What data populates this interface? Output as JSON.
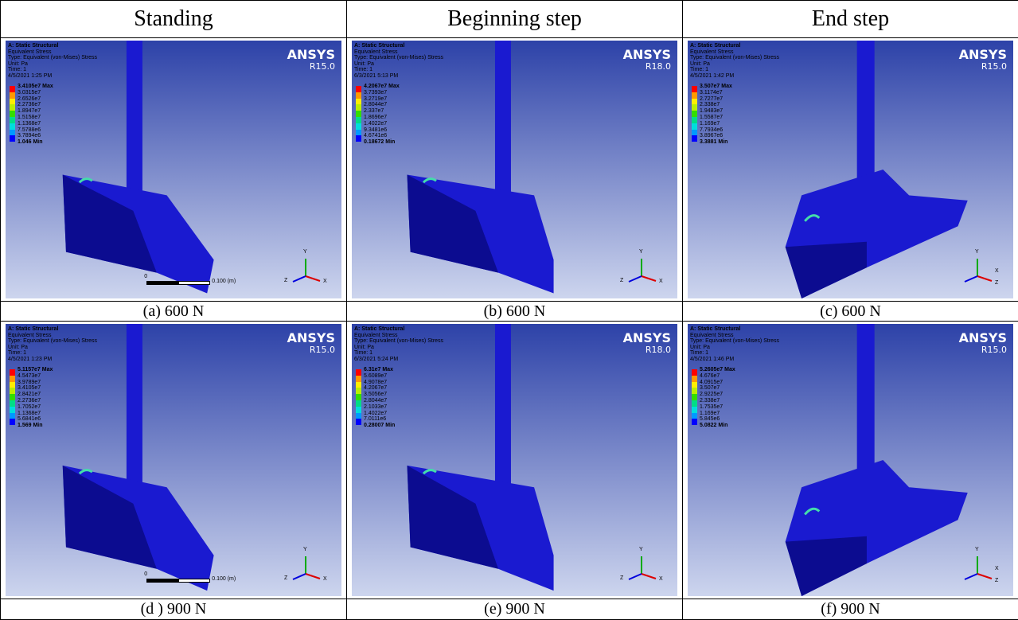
{
  "header": [
    "Standing",
    "Beginning step",
    "End step"
  ],
  "panels": [
    {
      "software": "ANSYS",
      "version": "R15.0",
      "title": "A: Static Structural",
      "result": "Equivalent Stress",
      "type": "Type: Equivalent (von-Mises) Stress",
      "unit": "Unit: Pa",
      "time": "Time: 1",
      "date": "4/5/2021 1:25 PM",
      "legend": [
        "3.4105e7 Max",
        "3.0315e7",
        "2.6526e7",
        "2.2736e7",
        "1.8947e7",
        "1.5158e7",
        "1.1368e7",
        "7.5788e6",
        "3.7894e6",
        "1.046 Min"
      ],
      "scale": [
        "0",
        "0.100 (m)"
      ],
      "axes": [
        "Y",
        "Z",
        "X"
      ],
      "caption": "(a)  600 N"
    },
    {
      "software": "ANSYS",
      "version": "R18.0",
      "title": "A: Static Structural",
      "result": "Equivalent Stress",
      "type": "Type: Equivalent (von-Mises) Stress",
      "unit": "Unit: Pa",
      "time": "Time: 1",
      "date": "6/3/2021 5:13 PM",
      "legend": [
        "4.2067e7 Max",
        "3.7393e7",
        "3.2719e7",
        "2.8044e7",
        "2.337e7",
        "1.8696e7",
        "1.4022e7",
        "9.3481e6",
        "4.6741e6",
        "0.18672 Min"
      ],
      "axes": [
        "Y",
        "Z",
        "X"
      ],
      "caption": "(b)  600 N"
    },
    {
      "software": "ANSYS",
      "version": "R15.0",
      "title": "A: Static Structural",
      "result": "Equivalent Stress",
      "type": "Type: Equivalent (von-Mises) Stress",
      "unit": "Unit: Pa",
      "time": "Time: 1",
      "date": "4/5/2021 1:42 PM",
      "legend": [
        "3.507e7 Max",
        "3.1174e7",
        "2.7277e7",
        "2.338e7",
        "1.9483e7",
        "1.5587e7",
        "1.169e7",
        "7.7934e6",
        "3.8967e6",
        "3.3881 Min"
      ],
      "axes": [
        "Y",
        "X",
        "Z"
      ],
      "caption": "(c)  600 N"
    },
    {
      "software": "ANSYS",
      "version": "R15.0",
      "title": "A: Static Structural",
      "result": "Equivalent Stress",
      "type": "Type: Equivalent (von-Mises) Stress",
      "unit": "Unit: Pa",
      "time": "Time: 1",
      "date": "4/5/2021 1:23 PM",
      "legend": [
        "5.1157e7 Max",
        "4.5473e7",
        "3.9789e7",
        "3.4105e7",
        "2.8421e7",
        "2.2736e7",
        "1.7052e7",
        "1.1368e7",
        "5.6841e6",
        "1.569 Min"
      ],
      "scale": [
        "0",
        "0.100 (m)"
      ],
      "axes": [
        "Y",
        "Z",
        "X"
      ],
      "caption": "(d ) 900 N"
    },
    {
      "software": "ANSYS",
      "version": "R18.0",
      "title": "A: Static Structural",
      "result": "Equivalent Stress",
      "type": "Type: Equivalent (von-Mises) Stress",
      "unit": "Unit: Pa",
      "time": "Time: 1",
      "date": "6/3/2021 5:24 PM",
      "legend": [
        "6.31e7 Max",
        "5.6089e7",
        "4.9078e7",
        "4.2067e7",
        "3.5056e7",
        "2.8044e7",
        "2.1033e7",
        "1.4022e7",
        "7.0111e6",
        "0.28007 Min"
      ],
      "axes": [
        "Y",
        "Z",
        "X"
      ],
      "caption": "(e) 900 N"
    },
    {
      "software": "ANSYS",
      "version": "R15.0",
      "title": "A: Static Structural",
      "result": "Equivalent Stress",
      "type": "Type: Equivalent (von-Mises) Stress",
      "unit": "Unit: Pa",
      "time": "Time: 1",
      "date": "4/5/2021 1:46 PM",
      "legend": [
        "5.2605e7 Max",
        "4.676e7",
        "4.0915e7",
        "3.507e7",
        "2.9225e7",
        "2.338e7",
        "1.7535e7",
        "1.169e7",
        "5.845e6",
        "5.0822 Min"
      ],
      "axes": [
        "Y",
        "X",
        "Z"
      ],
      "caption": "(f)  900 N"
    }
  ]
}
